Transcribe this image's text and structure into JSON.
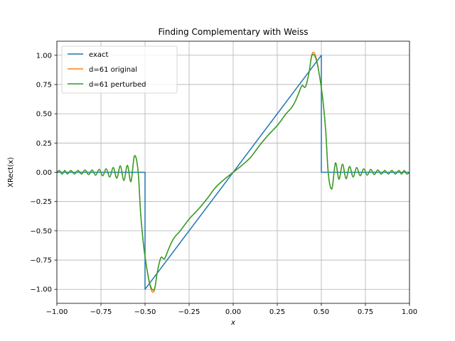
{
  "chart_data": {
    "type": "line",
    "title": "Finding Complementary with Weiss",
    "xlabel": "x",
    "ylabel": "XRect(x)",
    "xlim": [
      -1.0,
      1.0
    ],
    "ylim": [
      -1.12,
      1.12
    ],
    "grid": true,
    "legend_position": "top-left",
    "x_ticks": [
      "−1.00",
      "−0.75",
      "−0.50",
      "−0.25",
      "0.00",
      "0.25",
      "0.50",
      "0.75",
      "1.00"
    ],
    "x_tick_values": [
      -1.0,
      -0.75,
      -0.5,
      -0.25,
      0.0,
      0.25,
      0.5,
      0.75,
      1.0
    ],
    "y_ticks": [
      "−1.00",
      "−0.75",
      "−0.50",
      "−0.25",
      "0.00",
      "0.25",
      "0.50",
      "0.75",
      "1.00"
    ],
    "y_tick_values": [
      -1.0,
      -0.75,
      -0.5,
      -0.25,
      0.0,
      0.25,
      0.5,
      0.75,
      1.0
    ],
    "series": [
      {
        "name": "exact",
        "color": "#1f77b4",
        "x": [
          -1.0,
          -0.5,
          -0.5,
          0.5,
          0.5,
          1.0
        ],
        "y": [
          0.0,
          0.0,
          -1.0,
          1.0,
          0.0,
          0.0
        ]
      },
      {
        "name": "d=61 original",
        "color": "#ff7f0e",
        "x": [
          -1.0,
          -0.985,
          -0.97,
          -0.955,
          -0.94,
          -0.92,
          -0.9,
          -0.88,
          -0.86,
          -0.84,
          -0.82,
          -0.8,
          -0.78,
          -0.76,
          -0.74,
          -0.72,
          -0.7,
          -0.68,
          -0.66,
          -0.64,
          -0.62,
          -0.6,
          -0.58,
          -0.56,
          -0.54,
          -0.525,
          -0.51,
          -0.5,
          -0.49,
          -0.475,
          -0.46,
          -0.445,
          -0.43,
          -0.41,
          -0.39,
          -0.37,
          -0.35,
          -0.33,
          -0.3,
          -0.25,
          -0.2,
          -0.15,
          -0.1,
          -0.05,
          0.0,
          0.05,
          0.1,
          0.15,
          0.2,
          0.25,
          0.3,
          0.33,
          0.35,
          0.37,
          0.39,
          0.41,
          0.43,
          0.445,
          0.46,
          0.475,
          0.49,
          0.5,
          0.51,
          0.525,
          0.54,
          0.56,
          0.58,
          0.6,
          0.62,
          0.64,
          0.66,
          0.68,
          0.7,
          0.72,
          0.74,
          0.76,
          0.78,
          0.8,
          0.82,
          0.84,
          0.86,
          0.88,
          0.9,
          0.92,
          0.94,
          0.955,
          0.97,
          0.985,
          1.0
        ],
        "y": [
          0.0,
          0.015,
          -0.015,
          0.015,
          -0.015,
          0.015,
          -0.015,
          0.015,
          -0.015,
          0.02,
          -0.02,
          0.02,
          -0.025,
          0.025,
          -0.03,
          0.03,
          -0.04,
          0.04,
          -0.05,
          0.055,
          -0.07,
          0.06,
          -0.08,
          0.14,
          0.02,
          -0.35,
          -0.6,
          -0.72,
          -0.82,
          -0.95,
          -1.02,
          -1.0,
          -0.85,
          -0.73,
          -0.74,
          -0.67,
          -0.6,
          -0.55,
          -0.5,
          -0.4,
          -0.32,
          -0.23,
          -0.13,
          -0.06,
          0.0,
          0.06,
          0.13,
          0.23,
          0.32,
          0.4,
          0.5,
          0.55,
          0.6,
          0.67,
          0.74,
          0.73,
          0.85,
          1.0,
          1.02,
          0.95,
          0.82,
          0.72,
          0.6,
          0.35,
          -0.02,
          -0.14,
          0.08,
          -0.06,
          0.07,
          -0.055,
          0.05,
          -0.04,
          0.04,
          -0.03,
          0.03,
          -0.025,
          0.025,
          -0.02,
          0.02,
          -0.015,
          0.015,
          -0.015,
          0.015,
          -0.015,
          0.015,
          -0.015,
          0.015,
          -0.015,
          0.0
        ]
      },
      {
        "name": "d=61 perturbed",
        "color": "#2ca02c",
        "x": [
          -1.0,
          -0.985,
          -0.97,
          -0.955,
          -0.94,
          -0.92,
          -0.9,
          -0.88,
          -0.86,
          -0.84,
          -0.82,
          -0.8,
          -0.78,
          -0.76,
          -0.74,
          -0.72,
          -0.7,
          -0.68,
          -0.66,
          -0.64,
          -0.62,
          -0.6,
          -0.58,
          -0.56,
          -0.54,
          -0.525,
          -0.51,
          -0.5,
          -0.49,
          -0.475,
          -0.46,
          -0.445,
          -0.43,
          -0.41,
          -0.39,
          -0.37,
          -0.35,
          -0.33,
          -0.3,
          -0.25,
          -0.2,
          -0.15,
          -0.1,
          -0.05,
          0.0,
          0.05,
          0.1,
          0.15,
          0.2,
          0.25,
          0.3,
          0.33,
          0.35,
          0.37,
          0.39,
          0.41,
          0.43,
          0.445,
          0.46,
          0.475,
          0.49,
          0.5,
          0.51,
          0.525,
          0.54,
          0.56,
          0.58,
          0.6,
          0.62,
          0.64,
          0.66,
          0.68,
          0.7,
          0.72,
          0.74,
          0.76,
          0.78,
          0.8,
          0.82,
          0.84,
          0.86,
          0.88,
          0.9,
          0.92,
          0.94,
          0.955,
          0.97,
          0.985,
          1.0
        ],
        "y": [
          0.0,
          0.015,
          -0.015,
          0.015,
          -0.015,
          0.015,
          -0.015,
          0.015,
          -0.015,
          0.02,
          -0.02,
          0.02,
          -0.025,
          0.025,
          -0.03,
          0.03,
          -0.04,
          0.04,
          -0.05,
          0.055,
          -0.07,
          0.06,
          -0.08,
          0.14,
          0.02,
          -0.35,
          -0.6,
          -0.72,
          -0.82,
          -0.94,
          -1.0,
          -0.99,
          -0.85,
          -0.73,
          -0.74,
          -0.67,
          -0.6,
          -0.55,
          -0.5,
          -0.4,
          -0.32,
          -0.23,
          -0.13,
          -0.06,
          0.0,
          0.06,
          0.13,
          0.23,
          0.32,
          0.4,
          0.5,
          0.55,
          0.6,
          0.67,
          0.74,
          0.73,
          0.85,
          0.99,
          1.0,
          0.94,
          0.82,
          0.72,
          0.6,
          0.35,
          -0.02,
          -0.14,
          0.08,
          -0.06,
          0.07,
          -0.055,
          0.05,
          -0.04,
          0.04,
          -0.03,
          0.03,
          -0.025,
          0.025,
          -0.02,
          0.02,
          -0.015,
          0.015,
          -0.015,
          0.015,
          -0.015,
          0.015,
          -0.015,
          0.015,
          -0.015,
          0.0
        ]
      }
    ]
  }
}
